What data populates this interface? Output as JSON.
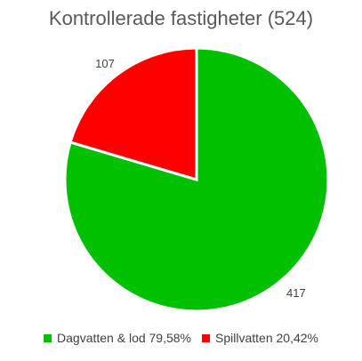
{
  "chart_data": {
    "type": "pie",
    "title": "Kontrollerade fastigheter (524)",
    "slices": [
      {
        "name": "Dagvatten & lod",
        "value": 417,
        "color": "#00C000"
      },
      {
        "name": "Spillvatten",
        "value": 107,
        "color": "#FF0000"
      }
    ],
    "data_labels": [
      "417",
      "107"
    ],
    "legend_labels": [
      "Dagvatten & lod 79,58%",
      "Spillvatten 20,42%"
    ],
    "legend_position": "bottom"
  }
}
